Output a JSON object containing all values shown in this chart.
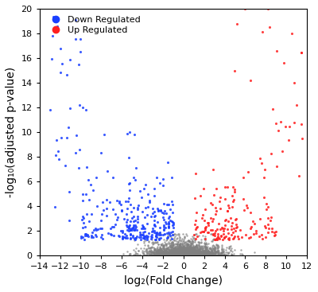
{
  "title": "",
  "xlabel": "log₂(Fold Change)",
  "ylabel": "-log₁₀(adjusted p-value)",
  "xlim": [
    -14,
    12
  ],
  "ylim": [
    0,
    20
  ],
  "xticks": [
    -14,
    -12,
    -10,
    -8,
    -6,
    -4,
    -2,
    0,
    2,
    4,
    6,
    8,
    10,
    12
  ],
  "yticks": [
    0,
    2,
    4,
    6,
    8,
    10,
    12,
    14,
    16,
    18,
    20
  ],
  "background_color": "#ffffff",
  "down_color": "#1a3fff",
  "up_color": "#ff2020",
  "ns_color": "#808080",
  "legend_down": "Down Regulated",
  "legend_up": "Up Regulated",
  "seed": 42,
  "n_ns": 2500,
  "n_down": 350,
  "n_up": 200,
  "point_size_ns": 3,
  "point_size_sig": 5,
  "alpha_ns": 0.7,
  "alpha_sig": 0.85
}
